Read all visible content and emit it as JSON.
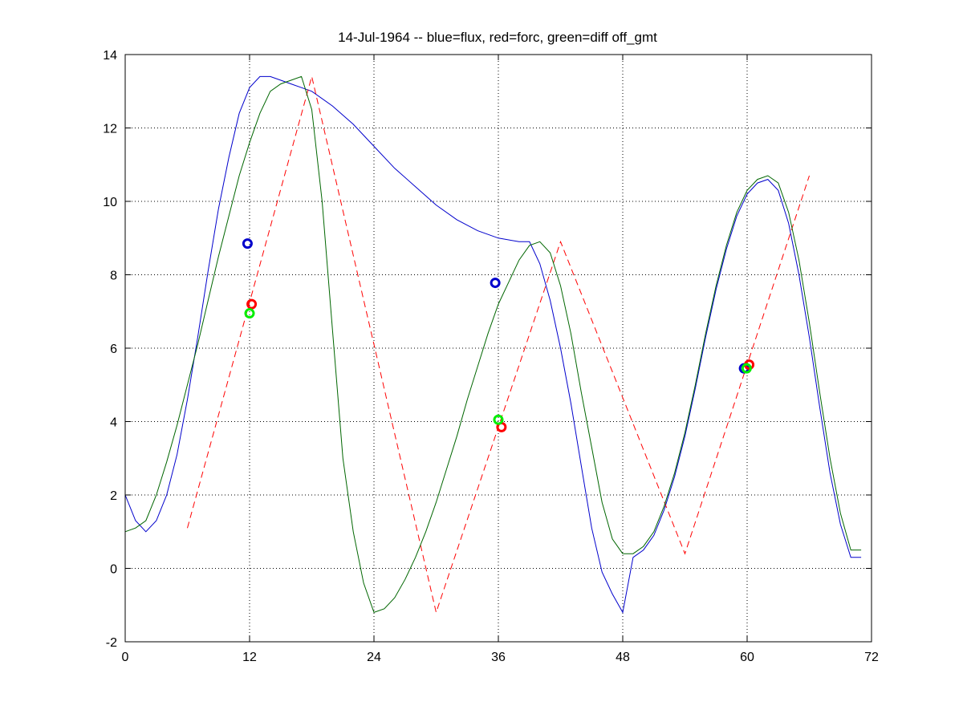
{
  "chart_data": {
    "type": "line",
    "title": "14-Jul-1964 -- blue=flux, red=forc, green=diff off_gmt",
    "xlabel": "",
    "ylabel": "",
    "xlim": [
      0,
      72
    ],
    "ylim": [
      -2,
      14
    ],
    "xticks": [
      0,
      12,
      24,
      36,
      48,
      60,
      72
    ],
    "yticks": [
      -2,
      0,
      2,
      4,
      6,
      8,
      10,
      12,
      14
    ],
    "grid": true,
    "series": [
      {
        "color": "#0000cc",
        "style": "solid",
        "x": [
          0,
          1,
          2,
          3,
          4,
          5,
          6,
          7,
          8,
          9,
          10,
          11,
          12,
          13,
          14,
          15,
          16,
          17,
          18,
          20,
          22,
          24,
          26,
          28,
          30,
          32,
          34,
          36,
          38,
          39,
          40,
          41,
          42,
          43,
          44,
          45,
          46,
          47,
          48,
          49,
          50,
          51,
          52,
          53,
          54,
          55,
          56,
          57,
          58,
          59,
          60,
          61,
          62,
          63,
          64,
          65,
          66,
          67,
          68,
          69,
          70,
          71
        ],
        "y": [
          2.0,
          1.3,
          1.0,
          1.3,
          2.0,
          3.1,
          4.6,
          6.3,
          8.1,
          9.8,
          11.2,
          12.4,
          13.1,
          13.4,
          13.4,
          13.3,
          13.2,
          13.1,
          13.0,
          12.6,
          12.1,
          11.5,
          10.9,
          10.4,
          9.9,
          9.5,
          9.2,
          9.0,
          8.9,
          8.9,
          8.3,
          7.3,
          6.0,
          4.5,
          2.8,
          1.1,
          -0.1,
          -0.7,
          -1.2,
          0.3,
          0.5,
          0.9,
          1.6,
          2.5,
          3.6,
          4.9,
          6.3,
          7.6,
          8.7,
          9.6,
          10.2,
          10.5,
          10.6,
          10.3,
          9.4,
          8.0,
          6.3,
          4.4,
          2.6,
          1.2,
          0.3,
          0.3
        ]
      },
      {
        "color": "#ff0000",
        "style": "dashed",
        "x": [
          6,
          18,
          30,
          42,
          54,
          66
        ],
        "y": [
          1.1,
          13.4,
          -1.2,
          8.9,
          0.4,
          10.7
        ]
      },
      {
        "color": "#006600",
        "style": "solid",
        "x": [
          0,
          1,
          2,
          3,
          4,
          5,
          6,
          7,
          8,
          9,
          10,
          11,
          12,
          13,
          14,
          15,
          16,
          17,
          18,
          19,
          20,
          21,
          22,
          23,
          24,
          25,
          26,
          27,
          28,
          29,
          30,
          31,
          32,
          33,
          34,
          35,
          36,
          37,
          38,
          39,
          40,
          41,
          42,
          43,
          44,
          45,
          46,
          47,
          48,
          49,
          50,
          51,
          52,
          53,
          54,
          55,
          56,
          57,
          58,
          59,
          60,
          61,
          62,
          63,
          64,
          65,
          66,
          67,
          68,
          69,
          70,
          71
        ],
        "y": [
          1.0,
          1.1,
          1.3,
          2.0,
          2.9,
          3.9,
          5.0,
          6.1,
          7.3,
          8.5,
          9.6,
          10.7,
          11.6,
          12.4,
          13.0,
          13.2,
          13.3,
          13.4,
          12.5,
          10.0,
          6.5,
          3.0,
          1.0,
          -0.4,
          -1.2,
          -1.1,
          -0.8,
          -0.3,
          0.3,
          1.0,
          1.8,
          2.7,
          3.6,
          4.6,
          5.5,
          6.4,
          7.2,
          7.8,
          8.4,
          8.8,
          8.9,
          8.6,
          7.7,
          6.4,
          4.8,
          3.3,
          1.8,
          0.8,
          0.4,
          0.4,
          0.6,
          1.0,
          1.7,
          2.6,
          3.7,
          5.0,
          6.4,
          7.7,
          8.8,
          9.7,
          10.3,
          10.6,
          10.7,
          10.5,
          9.7,
          8.4,
          6.7,
          4.8,
          3.0,
          1.5,
          0.5,
          0.5
        ]
      }
    ],
    "markers": [
      {
        "color": "#0000cc",
        "x": 11.8,
        "y": 8.85
      },
      {
        "color": "#ff0000",
        "x": 12.2,
        "y": 7.2
      },
      {
        "color": "#00ee00",
        "x": 12.0,
        "y": 6.95
      },
      {
        "color": "#0000cc",
        "x": 35.7,
        "y": 7.78
      },
      {
        "color": "#ff0000",
        "x": 36.3,
        "y": 3.85
      },
      {
        "color": "#00ee00",
        "x": 36.0,
        "y": 4.05
      },
      {
        "color": "#0000cc",
        "x": 59.7,
        "y": 5.45
      },
      {
        "color": "#ff0000",
        "x": 60.2,
        "y": 5.55
      },
      {
        "color": "#00ee00",
        "x": 59.95,
        "y": 5.45
      }
    ]
  }
}
